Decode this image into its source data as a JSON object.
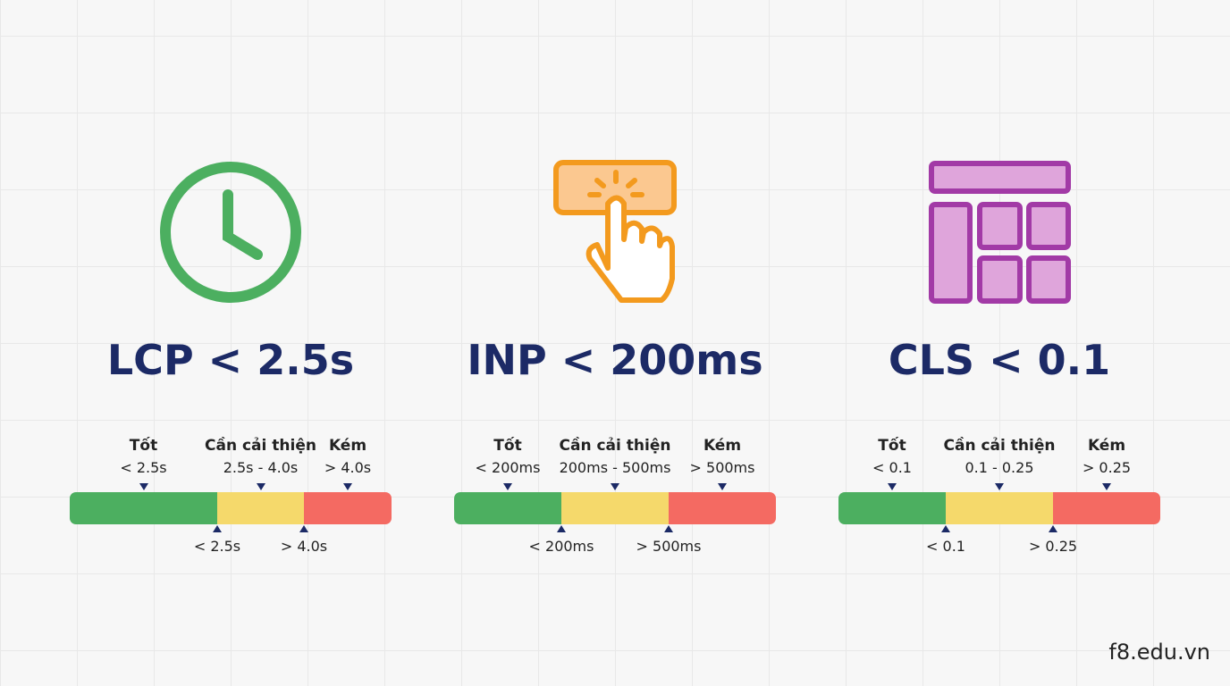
{
  "metrics": [
    {
      "title": "LCP < 2.5s",
      "zones": [
        {
          "name": "Tốt",
          "range": "< 2.5s"
        },
        {
          "name": "Cần cải thiện",
          "range": "2.5s - 4.0s"
        },
        {
          "name": "Kém",
          "range": "> 4.0s"
        }
      ],
      "thresholds": [
        "< 2.5s",
        "> 4.0s"
      ]
    },
    {
      "title": "INP < 200ms",
      "zones": [
        {
          "name": "Tốt",
          "range": "< 200ms"
        },
        {
          "name": "Cần cải thiện",
          "range": "200ms - 500ms"
        },
        {
          "name": "Kém",
          "range": "> 500ms"
        }
      ],
      "thresholds": [
        "< 200ms",
        "> 500ms"
      ]
    },
    {
      "title": "CLS < 0.1",
      "zones": [
        {
          "name": "Tốt",
          "range": "< 0.1"
        },
        {
          "name": "Cần cải thiện",
          "range": "0.1 - 0.25"
        },
        {
          "name": "Kém",
          "range": "> 0.25"
        }
      ],
      "thresholds": [
        "< 0.1",
        "> 0.25"
      ]
    }
  ],
  "footer": "f8.edu.vn"
}
